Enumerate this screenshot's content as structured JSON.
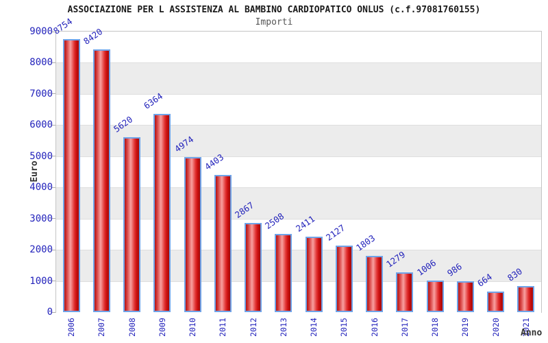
{
  "header": {
    "title": "ASSOCIAZIONE PER L ASSISTENZA AL BAMBINO CARDIOPATICO ONLUS (c.f.97081760155)",
    "subtitle": "Importi"
  },
  "chart_data": {
    "type": "bar",
    "title": "ASSOCIAZIONE PER L ASSISTENZA AL BAMBINO CARDIOPATICO ONLUS (c.f.97081760155)",
    "subtitle": "Importi",
    "xlabel": "Anno",
    "ylabel": "Euro",
    "categories": [
      "2006",
      "2007",
      "2008",
      "2009",
      "2010",
      "2011",
      "2012",
      "2013",
      "2014",
      "2015",
      "2016",
      "2017",
      "2018",
      "2019",
      "2020",
      "2021"
    ],
    "values": [
      8754,
      8420,
      5620,
      6364,
      4974,
      4403,
      2867,
      2508,
      2411,
      2127,
      1803,
      1279,
      1006,
      986,
      664,
      830
    ],
    "ylim": [
      0,
      9000
    ],
    "ytick_step": 1000,
    "yticks": [
      0,
      1000,
      2000,
      3000,
      4000,
      5000,
      6000,
      7000,
      8000,
      9000
    ],
    "legend": "none",
    "grid": "alternating horizontal bands per 1000 units: white 0-1000, gray 1000-2000, etc.",
    "colors": {
      "bar_border": "#6fa3e8",
      "bar_fill_dark": "#a30808",
      "bar_fill_light": "#f8a0a0",
      "label_text": "#2222bb",
      "band_gray": "#ececec",
      "band_line": "#dedede",
      "axis_title": "#333333",
      "frame": "#c4c4c4"
    }
  }
}
